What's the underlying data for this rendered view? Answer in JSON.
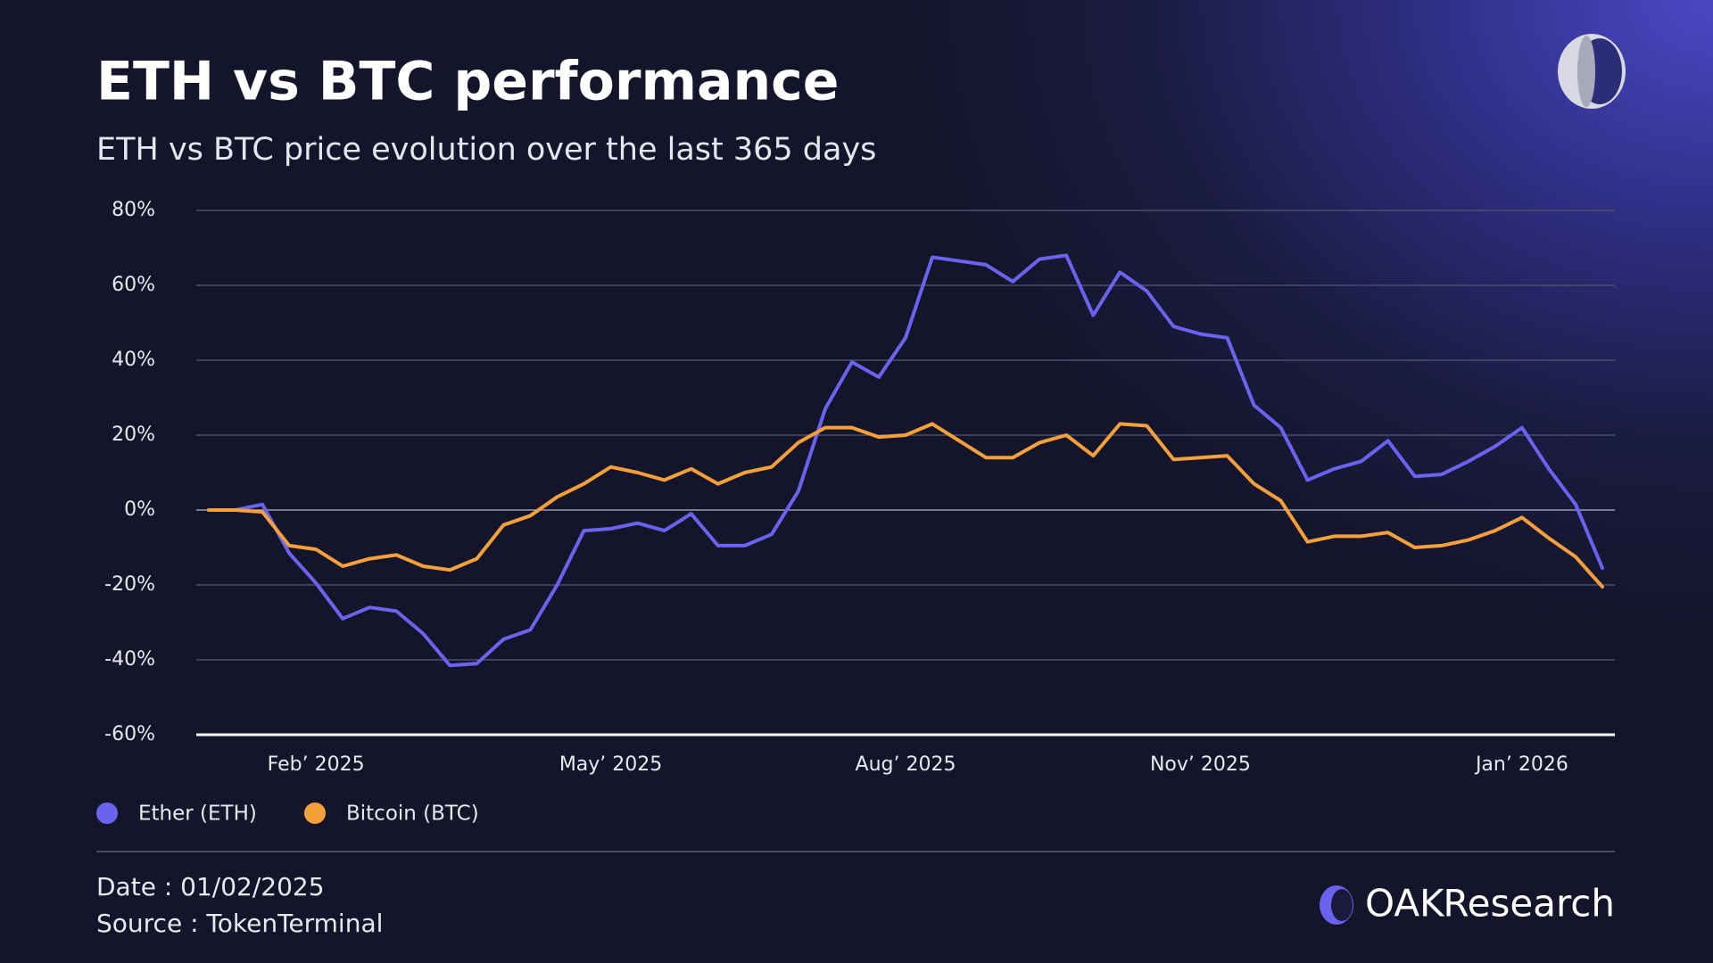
{
  "chart_data": {
    "type": "line",
    "title": "ETH vs BTC performance",
    "subtitle": "ETH vs BTC price evolution over the last 365 days",
    "categories": [
      null,
      null,
      null,
      null,
      "Feb’ 2025",
      null,
      null,
      null,
      null,
      null,
      null,
      null,
      null,
      null,
      null,
      "May’ 2025",
      null,
      null,
      null,
      null,
      null,
      null,
      null,
      null,
      null,
      null,
      "Aug’ 2025",
      null,
      null,
      null,
      null,
      null,
      null,
      null,
      null,
      null,
      null,
      "Nov’ 2025",
      null,
      null,
      null,
      null,
      null,
      null,
      null,
      null,
      null,
      null,
      null,
      "Jan’ 2026",
      null,
      null,
      null
    ],
    "series": [
      {
        "name": "Ether (ETH)",
        "color": "#6b63f0",
        "values": [
          0,
          0,
          1.5,
          -11.5,
          -19.5,
          -29,
          -26,
          -27,
          -33,
          -41.5,
          -41,
          -34.5,
          -32,
          -20,
          -5.5,
          -5,
          -3.5,
          -5.5,
          -1,
          -9.5,
          -9.5,
          -6.5,
          5,
          27,
          39.5,
          35.5,
          46,
          67.5,
          66.5,
          65.5,
          61,
          67,
          68,
          52,
          63.5,
          58.5,
          49,
          47,
          46,
          28,
          22,
          8,
          11,
          13,
          18.5,
          9,
          9.5,
          13,
          17,
          22,
          11,
          1.5,
          -15.5
        ]
      },
      {
        "name": "Bitcoin (BTC)",
        "color": "#f6a03c",
        "values": [
          0,
          0,
          -0.5,
          -9.5,
          -10.5,
          -15,
          -13,
          -12,
          -15,
          -16,
          -13,
          -4,
          -1.5,
          3.5,
          7,
          11.5,
          10,
          8,
          11,
          7,
          10,
          11.5,
          18,
          22,
          22,
          19.5,
          20,
          23,
          18.5,
          14,
          14,
          18,
          20,
          14.5,
          23,
          22.5,
          13.5,
          14,
          14.5,
          7,
          2.5,
          -8.5,
          -7,
          -7,
          -6,
          -10,
          -9.5,
          -8,
          -5.5,
          -2,
          -7.5,
          -12.5,
          -20.5
        ]
      }
    ],
    "ylim": [
      -60,
      80
    ],
    "yticks": [
      {
        "value": -60,
        "label": "-60%"
      },
      {
        "value": -40,
        "label": "-40%"
      },
      {
        "value": -20,
        "label": "-20%"
      },
      {
        "value": 0,
        "label": "0%"
      },
      {
        "value": 20,
        "label": "20%"
      },
      {
        "value": 40,
        "label": "40%"
      },
      {
        "value": 60,
        "label": "60%"
      },
      {
        "value": 80,
        "label": "80%"
      }
    ],
    "grid": true
  },
  "footer": {
    "date": "Date : 01/02/2025",
    "source": "Source : TokenTerminal"
  },
  "brand": {
    "name": "OAK",
    "suffix": "Research"
  }
}
